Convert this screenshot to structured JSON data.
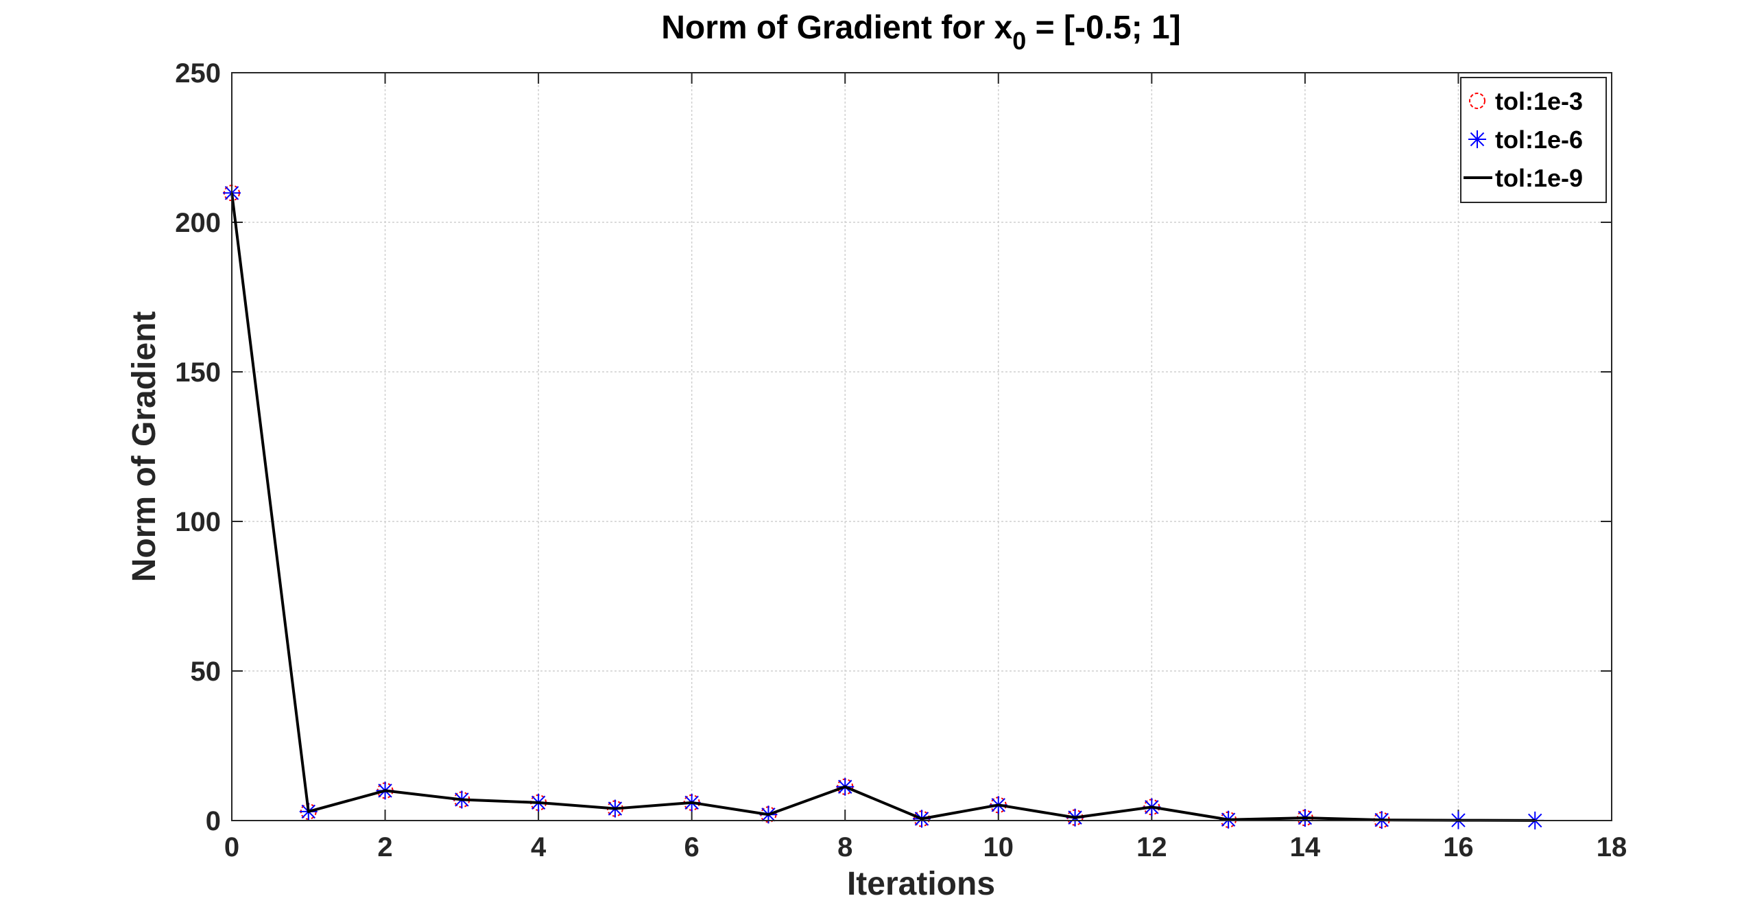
{
  "chart_data": {
    "type": "line",
    "title_main": "Norm of Gradient for x",
    "title_sub": "0",
    "title_tail": " = [-0.5; 1]",
    "xlabel": "Iterations",
    "ylabel": "Norm of Gradient",
    "xlim": [
      0,
      18
    ],
    "ylim": [
      0,
      250
    ],
    "xticks": [
      0,
      2,
      4,
      6,
      8,
      10,
      12,
      14,
      16,
      18
    ],
    "yticks": [
      0,
      50,
      100,
      150,
      200,
      250
    ],
    "grid": true,
    "legend_position": "top-right",
    "series": [
      {
        "name": "tol:1e-3",
        "marker": "circle",
        "line": "none",
        "color": "#ff0000",
        "x": [
          0,
          1,
          2,
          3,
          4,
          5,
          6,
          7,
          8,
          9,
          10,
          11,
          12,
          13,
          14,
          15
        ],
        "y": [
          209.8,
          3.0,
          10.0,
          7.0,
          6.0,
          4.0,
          6.0,
          2.0,
          11.3,
          0.6,
          5.2,
          1.0,
          4.5,
          0.3,
          0.9,
          0.2
        ]
      },
      {
        "name": "tol:1e-6",
        "marker": "asterisk",
        "line": "none",
        "color": "#0000ff",
        "x": [
          0,
          1,
          2,
          3,
          4,
          5,
          6,
          7,
          8,
          9,
          10,
          11,
          12,
          13,
          14,
          15,
          16,
          17
        ],
        "y": [
          209.8,
          3.0,
          10.0,
          7.0,
          6.0,
          4.0,
          6.0,
          2.0,
          11.3,
          0.6,
          5.2,
          1.0,
          4.5,
          0.3,
          0.9,
          0.2,
          0.1,
          0.02
        ]
      },
      {
        "name": "tol:1e-9",
        "marker": "none",
        "line": "solid",
        "color": "#000000",
        "x": [
          0,
          1,
          2,
          3,
          4,
          5,
          6,
          7,
          8,
          9,
          10,
          11,
          12,
          13,
          14,
          15,
          16,
          17
        ],
        "y": [
          209.8,
          3.0,
          10.0,
          7.0,
          6.0,
          4.0,
          6.0,
          2.0,
          11.3,
          0.6,
          5.2,
          1.0,
          4.5,
          0.3,
          0.9,
          0.2,
          0.1,
          0.02
        ]
      }
    ]
  }
}
